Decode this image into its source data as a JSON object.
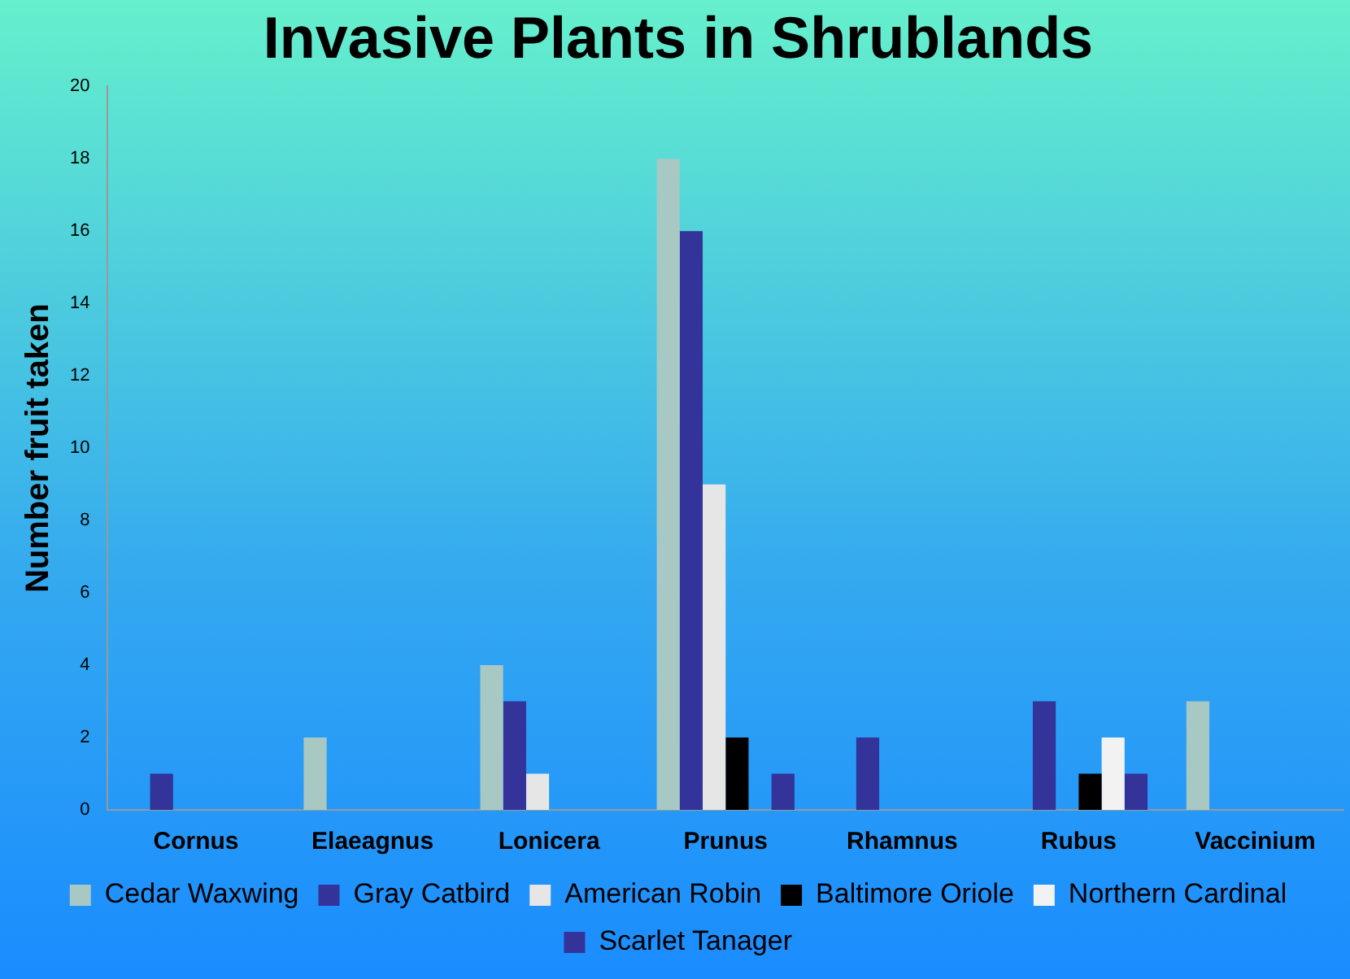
{
  "chart_data": {
    "type": "bar",
    "title": "Invasive Plants in Shrublands",
    "ylabel": "Number fruit taken",
    "categories": [
      "Cornus",
      "Elaeagnus",
      "Lonicera",
      "Prunus",
      "Rhamnus",
      "Rubus",
      "Vaccinium"
    ],
    "series": [
      {
        "name": "Cedar Waxwing",
        "color": "#a8c8c4",
        "values": [
          0,
          2,
          4,
          18,
          0,
          0,
          3
        ]
      },
      {
        "name": "Gray Catbird",
        "color": "#333399",
        "values": [
          1,
          0,
          3,
          16,
          2,
          3,
          0
        ]
      },
      {
        "name": "American Robin",
        "color": "#e6e6e6",
        "values": [
          0,
          0,
          1,
          9,
          0,
          0,
          0
        ]
      },
      {
        "name": "Baltimore Oriole",
        "color": "#000000",
        "values": [
          0,
          0,
          0,
          2,
          0,
          1,
          0
        ]
      },
      {
        "name": "Northern Cardinal",
        "color": "#f2f2f2",
        "values": [
          0,
          0,
          0,
          0,
          0,
          2,
          0
        ]
      },
      {
        "name": "Scarlet Tanager",
        "color": "#333399",
        "values": [
          0,
          0,
          0,
          1,
          0,
          1,
          0
        ]
      }
    ],
    "ylim": [
      0,
      20
    ],
    "yticks": [
      0,
      2,
      4,
      6,
      8,
      10,
      12,
      14,
      16,
      18,
      20
    ],
    "grid": false,
    "legend": "bottom"
  }
}
